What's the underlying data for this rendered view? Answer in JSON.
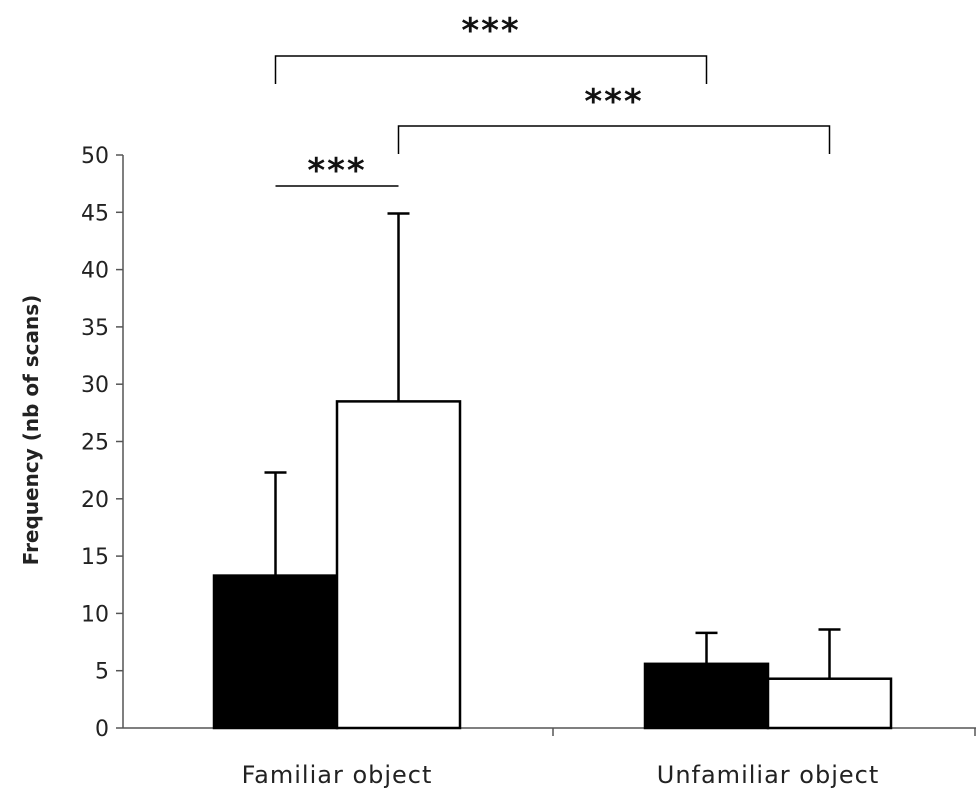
{
  "chart_data": {
    "type": "bar",
    "title": "",
    "xlabel": "",
    "ylabel": "Frequency (nb of scans)",
    "ylim": [
      0,
      50
    ],
    "yticks": [
      0,
      5,
      10,
      15,
      20,
      25,
      30,
      35,
      40,
      45,
      50
    ],
    "grid": false,
    "categories": [
      "Familiar object",
      "Unfamiliar object"
    ],
    "series": [
      {
        "color": "#000000",
        "values": [
          13.3,
          5.6
        ],
        "error": [
          9.0,
          2.7
        ]
      },
      {
        "color": "#ffffff",
        "values": [
          28.5,
          4.3
        ],
        "error": [
          16.4,
          4.3
        ]
      }
    ],
    "significance": [
      {
        "label": "***",
        "from": [
          "Familiar object",
          0
        ],
        "to": [
          "Familiar object",
          1
        ]
      },
      {
        "label": "***",
        "from": [
          "Familiar object",
          0
        ],
        "to": [
          "Unfamiliar object",
          0
        ]
      },
      {
        "label": "***",
        "from": [
          "Familiar object",
          1
        ],
        "to": [
          "Unfamiliar object",
          1
        ]
      }
    ]
  }
}
